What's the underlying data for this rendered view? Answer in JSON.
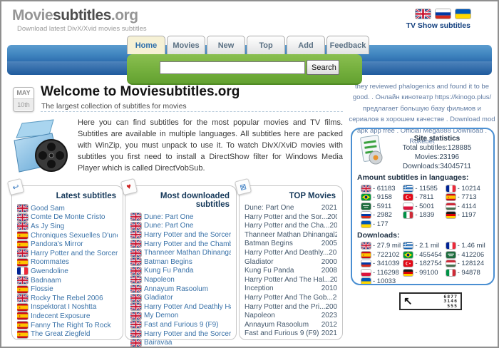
{
  "header": {
    "logo_part1": "Movie",
    "logo_part2": "subtitles",
    "logo_part3": ".org",
    "tagline": "Download latest DivX/Xvid movies subtitles",
    "language_flags": [
      "gb",
      "ru",
      "ua"
    ],
    "tv_show_link": "TV Show subtitles"
  },
  "nav": {
    "tabs": [
      {
        "label": "Home",
        "active": true
      },
      {
        "label": "Movies",
        "active": false
      },
      {
        "label": "New",
        "active": false
      },
      {
        "label": "Top",
        "active": false
      },
      {
        "label": "Add",
        "active": false
      },
      {
        "label": "Feedback",
        "active": false
      }
    ]
  },
  "search": {
    "value": "",
    "button_label": "Search"
  },
  "welcome": {
    "date_month": "MAY",
    "date_day": "10th",
    "title": "Welcome to Moviesubtitles.org",
    "subtitle": "The largest collection of subtitles for movies",
    "paragraph": "Here you can find subtitles for the most popular movies and TV films. Subtitles are available in multiple languages. All subtitles here are packed with WinZip, you must unpack to use it. To watch DivX/XviD movies with subtitles you first need to install a DirectShow filter for Windows Media Player which is called DirectVobSub."
  },
  "sidebar": {
    "promo_text": "they reviewed phalogenics and found it to be good. . Онлайн кинотеатр https://kinogo.plus/ предлагает большую базу фильмов и сериалов в хорошем качестве . Download mod apk app free . Official Mega888 Download . Rokebet",
    "stats": {
      "title": "Site statistics",
      "lines": [
        "Total subtitles:128885",
        "Movies:23196",
        "Downloads:34045711"
      ]
    },
    "languages": {
      "title": "Amount subtitles in languages:",
      "items": [
        {
          "flag": "gb",
          "count": "61183"
        },
        {
          "flag": "gr",
          "count": "11585"
        },
        {
          "flag": "fr",
          "count": "10214"
        },
        {
          "flag": "br",
          "count": "9158"
        },
        {
          "flag": "tr",
          "count": "7811"
        },
        {
          "flag": "es",
          "count": "7713"
        },
        {
          "flag": "sa",
          "count": "5911"
        },
        {
          "flag": "pl",
          "count": "5001"
        },
        {
          "flag": "hu",
          "count": "4114"
        },
        {
          "flag": "ru",
          "count": "2982"
        },
        {
          "flag": "it",
          "count": "1839"
        },
        {
          "flag": "de",
          "count": "1197"
        },
        {
          "flag": "ua",
          "count": "177"
        }
      ]
    },
    "downloads": {
      "title": "Downloads:",
      "items": [
        {
          "flag": "gb",
          "count": "27.9 mil"
        },
        {
          "flag": "gr",
          "count": "2.1 mil"
        },
        {
          "flag": "fr",
          "count": "1.46 mil"
        },
        {
          "flag": "es",
          "count": "722102"
        },
        {
          "flag": "br",
          "count": "455454"
        },
        {
          "flag": "sa",
          "count": "412206"
        },
        {
          "flag": "ru",
          "count": "341039"
        },
        {
          "flag": "tr",
          "count": "182754"
        },
        {
          "flag": "hu",
          "count": "128124"
        },
        {
          "flag": "pl",
          "count": "116298"
        },
        {
          "flag": "de",
          "count": "99100"
        },
        {
          "flag": "it",
          "count": "94878"
        },
        {
          "flag": "ua",
          "count": "10033"
        }
      ]
    },
    "counter": {
      "lines": [
        "6877",
        "3146",
        "555"
      ]
    }
  },
  "boxes": {
    "latest": {
      "title": "Latest subtitles",
      "items": [
        {
          "flag": "gb",
          "title": "Good Sam"
        },
        {
          "flag": "gb",
          "title": "Comte De Monte Cristo"
        },
        {
          "flag": "gb",
          "title": "As Jy Sing"
        },
        {
          "flag": "es",
          "title": "Chroniques Sexuelles D'une Famille"
        },
        {
          "flag": "es",
          "title": "Pandora's Mirror"
        },
        {
          "flag": "gb",
          "title": "Harry Potter and the Sorcerer's St"
        },
        {
          "flag": "es",
          "title": "Roommates"
        },
        {
          "flag": "fr",
          "title": "Gwendoline"
        },
        {
          "flag": "gb",
          "title": "Badnaam"
        },
        {
          "flag": "es",
          "title": "Flossie"
        },
        {
          "flag": "gb",
          "title": "Rocky The Rebel 2006"
        },
        {
          "flag": "es",
          "title": "Inspektorat I Noshtta"
        },
        {
          "flag": "es",
          "title": "Indecent Exposure"
        },
        {
          "flag": "es",
          "title": "Fanny The Right To Rock"
        },
        {
          "flag": "es",
          "title": "The Great Ziegfeld"
        }
      ]
    },
    "most_downloaded": {
      "title": "Most downloaded subtitles",
      "items": [
        {
          "flag": "gb",
          "title": "Dune: Part One"
        },
        {
          "flag": "gb",
          "title": "Dune: Part One"
        },
        {
          "flag": "gb",
          "title": "Harry Potter and the Sorcerer's Sto"
        },
        {
          "flag": "gb",
          "title": "Harry Potter and the Chamber of Sec"
        },
        {
          "flag": "gb",
          "title": "Thanneer Mathan Dhinangal"
        },
        {
          "flag": "gb",
          "title": "Batman Begins"
        },
        {
          "flag": "gb",
          "title": "Kung Fu Panda"
        },
        {
          "flag": "gb",
          "title": "Napoleon"
        },
        {
          "flag": "gb",
          "title": "Annayum Rasoolum"
        },
        {
          "flag": "gb",
          "title": "Gladiator"
        },
        {
          "flag": "gb",
          "title": "Harry Potter And Deathly Hallows: P"
        },
        {
          "flag": "gb",
          "title": "My Demon"
        },
        {
          "flag": "gb",
          "title": "Fast and Furious 9 (F9)"
        },
        {
          "flag": "gb",
          "title": "Harry Potter and the Sorcerer's Sto"
        },
        {
          "flag": "gb",
          "title": "Bairavaa"
        }
      ]
    },
    "top_movies": {
      "title": "TOP Movies",
      "items": [
        {
          "title": "Dune: Part One",
          "year": "2021"
        },
        {
          "title": "Harry Potter and the Sor...",
          "year": "2001"
        },
        {
          "title": "Harry Potter and the Cha...",
          "year": "2002"
        },
        {
          "title": "Thanneer Mathan Dhinangal",
          "year": "2019"
        },
        {
          "title": "Batman Begins",
          "year": "2005"
        },
        {
          "title": "Harry Potter And Deathly...",
          "year": "2011"
        },
        {
          "title": "Gladiator",
          "year": "2000"
        },
        {
          "title": "Kung Fu Panda",
          "year": "2008"
        },
        {
          "title": "Harry Potter And The Hal...",
          "year": "2009"
        },
        {
          "title": "Inception",
          "year": "2010"
        },
        {
          "title": "Harry Potter And The Gob...",
          "year": "2005"
        },
        {
          "title": "Harry Potter and the Pri...",
          "year": "2004"
        },
        {
          "title": "Napoleon",
          "year": "2023"
        },
        {
          "title": "Annayum Rasoolum",
          "year": "2012"
        },
        {
          "title": "Fast and Furious 9 (F9)",
          "year": "2021"
        }
      ]
    }
  }
}
